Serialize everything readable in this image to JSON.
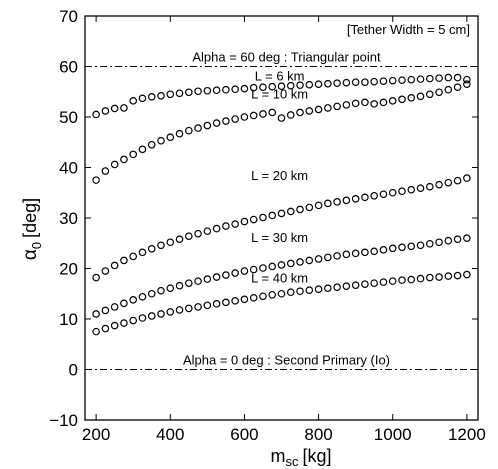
{
  "chart_data": {
    "type": "scatter",
    "title": "",
    "xlabel_main": "m",
    "xlabel_sub": "sc",
    "xlabel_unit": "[kg]",
    "ylabel_greek": "α",
    "ylabel_sub": "0",
    "ylabel_unit": "[deg]",
    "xlim": [
      170,
      1230
    ],
    "ylim": [
      -10,
      70
    ],
    "xticks": [
      200,
      400,
      600,
      800,
      1000,
      1200
    ],
    "yticks": [
      -10,
      0,
      10,
      20,
      30,
      40,
      50,
      60,
      70
    ],
    "grid": false,
    "marker": "open-circle",
    "note": "[Tether Width = 5 cm]",
    "reference_lines": [
      {
        "y": 60,
        "label": "Alpha = 60 deg : Triangular point",
        "style": "dash-dot"
      },
      {
        "y": 0,
        "label": "Alpha = 0 deg : Second Primary (Io)",
        "style": "dash-dot"
      }
    ],
    "series": [
      {
        "label": "L = 6 km",
        "label_pos": {
          "x": 695,
          "y": 57.2
        },
        "x": [
          200,
          225,
          250,
          275,
          300,
          325,
          350,
          375,
          400,
          425,
          450,
          475,
          500,
          525,
          550,
          575,
          600,
          625,
          650,
          675,
          700,
          725,
          750,
          775,
          800,
          825,
          850,
          875,
          900,
          925,
          950,
          975,
          1000,
          1025,
          1050,
          1075,
          1100,
          1125,
          1150,
          1175,
          1200
        ],
        "y": [
          50.5,
          51.2,
          51.7,
          51.8,
          53.2,
          53.7,
          54.0,
          54.2,
          54.5,
          54.7,
          54.9,
          55.1,
          55.2,
          55.3,
          55.4,
          55.5,
          55.6,
          55.8,
          55.9,
          56.0,
          56.1,
          56.2,
          56.3,
          56.4,
          56.5,
          56.6,
          56.7,
          56.8,
          56.9,
          56.9,
          57.0,
          57.1,
          57.2,
          57.3,
          57.4,
          57.5,
          57.6,
          57.7,
          57.8,
          57.8,
          57.4
        ]
      },
      {
        "label": "L = 10 km",
        "label_pos": {
          "x": 695,
          "y": 53.7
        },
        "x": [
          200,
          225,
          250,
          275,
          300,
          325,
          350,
          375,
          400,
          425,
          450,
          475,
          500,
          525,
          550,
          575,
          600,
          625,
          650,
          675,
          700,
          725,
          750,
          775,
          800,
          825,
          850,
          875,
          900,
          925,
          950,
          975,
          1000,
          1025,
          1050,
          1075,
          1100,
          1125,
          1150,
          1175,
          1200
        ],
        "y": [
          37.5,
          39.3,
          40.6,
          41.6,
          42.6,
          43.6,
          44.5,
          45.3,
          46.0,
          46.7,
          47.3,
          47.8,
          48.3,
          48.8,
          49.2,
          49.6,
          50.0,
          50.3,
          50.6,
          50.9,
          49.8,
          50.4,
          50.9,
          51.2,
          51.5,
          51.8,
          52.1,
          52.4,
          52.7,
          52.9,
          52.6,
          52.9,
          53.2,
          53.5,
          53.8,
          54.1,
          54.5,
          54.9,
          55.4,
          55.9,
          56.5
        ]
      },
      {
        "label": "L = 20 km",
        "label_pos": {
          "x": 695,
          "y": 37.5
        },
        "x": [
          200,
          225,
          250,
          275,
          300,
          325,
          350,
          375,
          400,
          425,
          450,
          475,
          500,
          525,
          550,
          575,
          600,
          625,
          650,
          675,
          700,
          725,
          750,
          775,
          800,
          825,
          850,
          875,
          900,
          925,
          950,
          975,
          1000,
          1025,
          1050,
          1075,
          1100,
          1125,
          1150,
          1175,
          1200
        ],
        "y": [
          18.2,
          19.5,
          20.6,
          21.6,
          22.4,
          23.2,
          23.9,
          24.6,
          25.2,
          25.8,
          26.4,
          26.9,
          27.4,
          27.9,
          28.4,
          28.8,
          29.3,
          29.7,
          30.1,
          30.5,
          30.9,
          31.3,
          31.7,
          32.1,
          32.5,
          32.9,
          33.2,
          33.5,
          33.8,
          34.1,
          34.4,
          34.7,
          35.0,
          35.3,
          35.6,
          35.9,
          36.2,
          36.6,
          37.0,
          37.4,
          37.9
        ]
      },
      {
        "label": "L = 30 km",
        "label_pos": {
          "x": 695,
          "y": 25.2
        },
        "x": [
          200,
          225,
          250,
          275,
          300,
          325,
          350,
          375,
          400,
          425,
          450,
          475,
          500,
          525,
          550,
          575,
          600,
          625,
          650,
          675,
          700,
          725,
          750,
          775,
          800,
          825,
          850,
          875,
          900,
          925,
          950,
          975,
          1000,
          1025,
          1050,
          1075,
          1100,
          1125,
          1150,
          1175,
          1200
        ],
        "y": [
          11.0,
          11.7,
          12.4,
          13.1,
          13.8,
          14.4,
          15.0,
          15.6,
          16.1,
          16.6,
          17.1,
          17.5,
          17.9,
          18.3,
          18.7,
          19.1,
          19.5,
          19.8,
          20.1,
          20.4,
          20.7,
          21.0,
          21.3,
          21.6,
          21.9,
          22.2,
          22.5,
          22.8,
          23.0,
          23.2,
          23.4,
          23.7,
          24.0,
          24.2,
          24.4,
          24.6,
          24.9,
          25.2,
          25.5,
          25.8,
          26.0
        ]
      },
      {
        "label": "L = 40  km",
        "label_pos": {
          "x": 695,
          "y": 17.2
        },
        "x": [
          200,
          225,
          250,
          275,
          300,
          325,
          350,
          375,
          400,
          425,
          450,
          475,
          500,
          525,
          550,
          575,
          600,
          625,
          650,
          675,
          700,
          725,
          750,
          775,
          800,
          825,
          850,
          875,
          900,
          925,
          950,
          975,
          1000,
          1025,
          1050,
          1075,
          1100,
          1125,
          1150,
          1175,
          1200
        ],
        "y": [
          7.5,
          8.1,
          8.7,
          9.2,
          9.7,
          10.2,
          10.6,
          11.0,
          11.4,
          11.8,
          12.1,
          12.4,
          12.7,
          13.0,
          13.3,
          13.6,
          13.9,
          14.2,
          14.5,
          14.8,
          15.0,
          15.3,
          15.5,
          15.7,
          15.9,
          16.1,
          16.3,
          16.5,
          16.7,
          16.9,
          17.1,
          17.3,
          17.5,
          17.7,
          17.8,
          18.0,
          18.2,
          18.3,
          18.5,
          18.6,
          18.8
        ]
      }
    ]
  }
}
